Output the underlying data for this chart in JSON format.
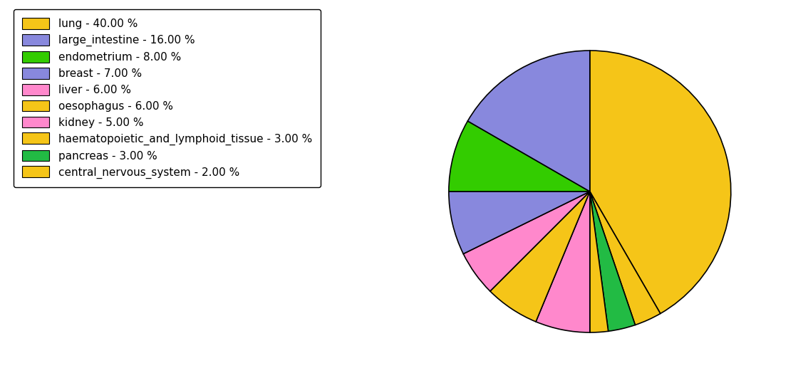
{
  "labels": [
    "lung",
    "haematopoietic_and_lymphoid_tissue",
    "pancreas",
    "central_nervous_system",
    "liver",
    "oesophagus",
    "kidney",
    "breast",
    "endometrium",
    "large_intestine"
  ],
  "values": [
    40,
    3,
    3,
    2,
    6,
    6,
    5,
    7,
    8,
    16
  ],
  "colors": [
    "#F5C518",
    "#F5C518",
    "#22BB44",
    "#F5C518",
    "#FF88CC",
    "#F5C518",
    "#FF88CC",
    "#8888DD",
    "#33CC00",
    "#8888DD"
  ],
  "legend_labels": [
    "lung - 40.00 %",
    "large_intestine - 16.00 %",
    "endometrium - 8.00 %",
    "breast - 7.00 %",
    "liver - 6.00 %",
    "oesophagus - 6.00 %",
    "kidney - 5.00 %",
    "haematopoietic_and_lymphoid_tissue - 3.00 %",
    "pancreas - 3.00 %",
    "central_nervous_system - 2.00 %"
  ],
  "legend_colors": [
    "#F5C518",
    "#8888DD",
    "#33CC00",
    "#8888DD",
    "#FF88CC",
    "#F5C518",
    "#FF88CC",
    "#F5C518",
    "#22BB44",
    "#F5C518"
  ],
  "startangle": 90,
  "figsize": [
    11.34,
    5.38
  ],
  "dpi": 100
}
